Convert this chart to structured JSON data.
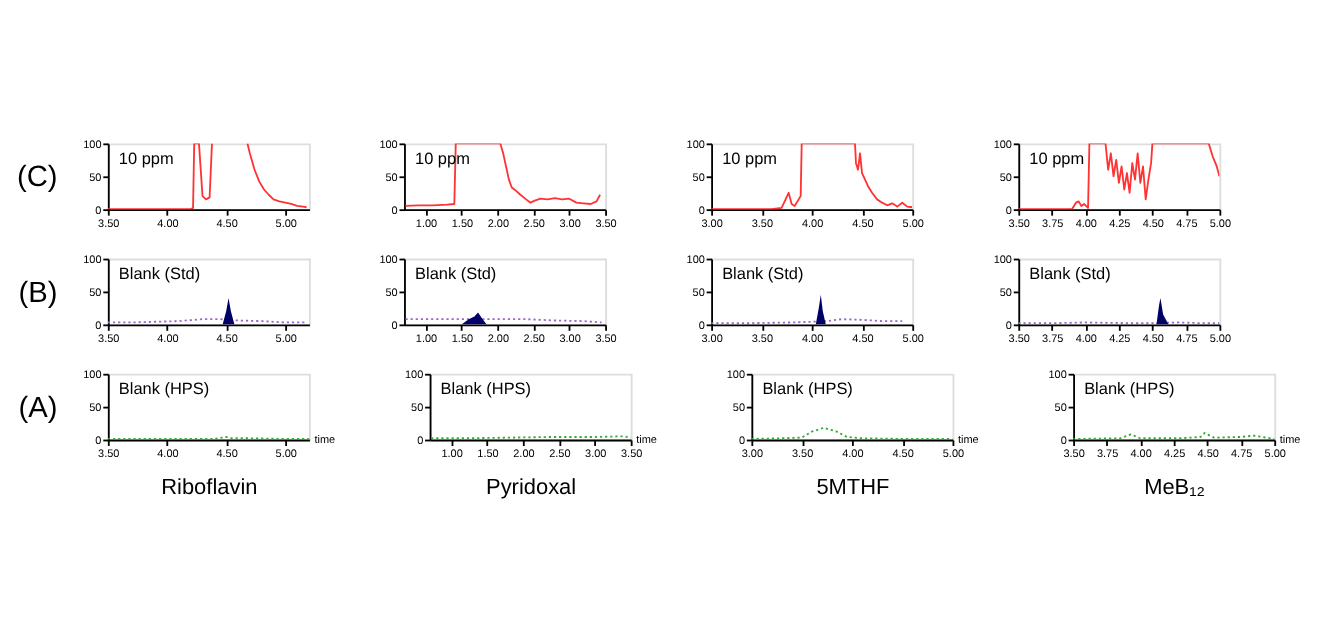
{
  "chart_data": [
    {
      "type": "line",
      "ylabel": "(C)",
      "annotations": [
        "10 ppm"
      ],
      "xlim": [
        3.5,
        5.2
      ],
      "xticks": [
        {
          "value": 3.5,
          "label": "3.50"
        },
        {
          "value": 4.0,
          "label": "4.00"
        },
        {
          "value": 4.5,
          "label": "4.50"
        },
        {
          "value": 5.0,
          "label": "5.00"
        }
      ],
      "ylim": [
        0,
        100
      ],
      "yticks": [
        0,
        50,
        100
      ],
      "line_style": "solid",
      "series": [
        {
          "color": "#ff3333",
          "x": [
            3.5,
            4.0,
            4.2,
            4.22,
            4.23,
            4.27,
            4.3,
            4.33,
            4.36,
            4.38,
            4.39,
            4.68,
            4.7,
            4.74,
            4.78,
            4.82,
            4.86,
            4.9,
            4.95,
            5.0,
            5.05,
            5.1,
            5.15,
            5.18
          ],
          "values": [
            0,
            0,
            0,
            2,
            100,
            100,
            20,
            15,
            18,
            100,
            null,
            100,
            85,
            60,
            42,
            30,
            22,
            15,
            12,
            10,
            8,
            5,
            4,
            3
          ]
        }
      ]
    },
    {
      "type": "line",
      "annotations": [
        "10 ppm"
      ],
      "xlim": [
        0.7,
        3.5
      ],
      "xticks": [
        {
          "value": 1.0,
          "label": "1.00"
        },
        {
          "value": 1.5,
          "label": "1.50"
        },
        {
          "value": 2.0,
          "label": "2.00"
        },
        {
          "value": 2.5,
          "label": "2.50"
        },
        {
          "value": 3.0,
          "label": "3.00"
        },
        {
          "value": 3.5,
          "label": "3.50"
        }
      ],
      "ylim": [
        0,
        100
      ],
      "yticks": [
        0,
        50,
        100
      ],
      "line_style": "solid",
      "series": [
        {
          "color": "#ff3333",
          "x": [
            0.72,
            0.9,
            1.1,
            1.3,
            1.4,
            1.42,
            1.6,
            1.8,
            2.0,
            2.04,
            2.08,
            2.12,
            2.16,
            2.2,
            2.26,
            2.32,
            2.4,
            2.46,
            2.52,
            2.6,
            2.7,
            2.8,
            2.9,
            3.0,
            3.1,
            3.2,
            3.3,
            3.38,
            3.43
          ],
          "values": [
            5,
            6,
            6,
            7,
            8,
            100,
            100,
            100,
            100,
            100,
            85,
            65,
            45,
            33,
            28,
            22,
            15,
            10,
            13,
            16,
            15,
            17,
            15,
            16,
            10,
            9,
            8,
            12,
            22
          ]
        }
      ]
    },
    {
      "type": "line",
      "annotations": [
        "10 ppm"
      ],
      "xlim": [
        3.0,
        5.0
      ],
      "xticks": [
        {
          "value": 3.0,
          "label": "3.00"
        },
        {
          "value": 3.5,
          "label": "3.50"
        },
        {
          "value": 4.0,
          "label": "4.00"
        },
        {
          "value": 4.5,
          "label": "4.50"
        },
        {
          "value": 5.0,
          "label": "5.00"
        }
      ],
      "ylim": [
        0,
        100
      ],
      "yticks": [
        0,
        50,
        100
      ],
      "line_style": "solid",
      "series": [
        {
          "color": "#ff3333",
          "x": [
            3.0,
            3.3,
            3.6,
            3.7,
            3.74,
            3.77,
            3.8,
            3.83,
            3.87,
            3.89,
            3.9,
            4.1,
            4.3,
            4.43,
            4.44,
            4.46,
            4.48,
            4.5,
            4.53,
            4.56,
            4.6,
            4.65,
            4.7,
            4.75,
            4.8,
            4.85,
            4.9,
            4.95,
            5.0
          ],
          "values": [
            0,
            0,
            0,
            2,
            15,
            25,
            8,
            5,
            15,
            20,
            100,
            100,
            100,
            100,
            70,
            60,
            85,
            55,
            45,
            35,
            25,
            15,
            10,
            6,
            9,
            4,
            10,
            4,
            3
          ]
        }
      ]
    },
    {
      "type": "line",
      "annotations": [
        "10 ppm"
      ],
      "xlim": [
        3.5,
        5.0
      ],
      "xticks": [
        {
          "value": 3.5,
          "label": "3.50"
        },
        {
          "value": 3.75,
          "label": "3.75"
        },
        {
          "value": 4.0,
          "label": "4.00"
        },
        {
          "value": 4.25,
          "label": "4.25"
        },
        {
          "value": 4.5,
          "label": "4.50"
        },
        {
          "value": 4.75,
          "label": "4.75"
        },
        {
          "value": 5.0,
          "label": "5.00"
        }
      ],
      "ylim": [
        0,
        100
      ],
      "yticks": [
        0,
        50,
        100
      ],
      "line_style": "solid",
      "series": [
        {
          "color": "#ff3333",
          "x": [
            3.5,
            3.7,
            3.9,
            3.93,
            3.95,
            3.97,
            3.99,
            4.02,
            4.03,
            4.15,
            4.17,
            4.19,
            4.21,
            4.23,
            4.25,
            4.27,
            4.29,
            4.31,
            4.33,
            4.35,
            4.37,
            4.39,
            4.41,
            4.43,
            4.45,
            4.47,
            4.49,
            4.5,
            4.7,
            4.92,
            4.95,
            4.98,
            5.0
          ],
          "values": [
            0,
            0,
            0,
            10,
            12,
            5,
            8,
            2,
            100,
            100,
            60,
            85,
            50,
            75,
            40,
            65,
            30,
            55,
            25,
            70,
            45,
            85,
            40,
            65,
            15,
            45,
            70,
            100,
            100,
            100,
            80,
            65,
            50
          ]
        }
      ]
    },
    {
      "type": "line",
      "ylabel": "(B)",
      "annotations": [
        "Blank (Std)"
      ],
      "xlim": [
        3.5,
        5.2
      ],
      "xticks": [
        {
          "value": 3.5,
          "label": "3.50"
        },
        {
          "value": 4.0,
          "label": "4.00"
        },
        {
          "value": 4.5,
          "label": "4.50"
        },
        {
          "value": 5.0,
          "label": "5.00"
        }
      ],
      "ylim": [
        0,
        100
      ],
      "yticks": [
        0,
        50,
        100
      ],
      "line_style": "dotted",
      "series": [
        {
          "color": "#9966cc",
          "x": [
            3.5,
            3.7,
            3.9,
            4.1,
            4.3,
            4.45,
            4.6,
            4.8,
            5.0,
            5.18
          ],
          "values": [
            3,
            3,
            4,
            5,
            8,
            8,
            6,
            5,
            3,
            3
          ]
        },
        {
          "type": "area",
          "color": "#000066",
          "x": [
            4.47,
            4.5,
            4.52,
            4.54,
            4.57
          ],
          "values": [
            0,
            20,
            40,
            20,
            0
          ]
        }
      ]
    },
    {
      "type": "line",
      "annotations": [
        "Blank (Std)"
      ],
      "xlim": [
        0.7,
        3.5
      ],
      "xticks": [
        {
          "value": 1.0,
          "label": "1.00"
        },
        {
          "value": 1.5,
          "label": "1.50"
        },
        {
          "value": 2.0,
          "label": "2.00"
        },
        {
          "value": 2.5,
          "label": "2.50"
        },
        {
          "value": 3.0,
          "label": "3.00"
        },
        {
          "value": 3.5,
          "label": "3.50"
        }
      ],
      "ylim": [
        0,
        100
      ],
      "yticks": [
        0,
        50,
        100
      ],
      "line_style": "dotted",
      "series": [
        {
          "color": "#9966cc",
          "x": [
            0.72,
            1.0,
            1.3,
            1.6,
            2.0,
            2.4,
            2.8,
            3.2,
            3.45
          ],
          "values": [
            8,
            8,
            8,
            8,
            8,
            8,
            6,
            5,
            3
          ]
        },
        {
          "type": "area",
          "color": "#000066",
          "x": [
            1.5,
            1.6,
            1.68,
            1.73,
            1.78,
            1.85
          ],
          "values": [
            0,
            8,
            12,
            18,
            10,
            0
          ]
        }
      ]
    },
    {
      "type": "line",
      "annotations": [
        "Blank (Std)"
      ],
      "xlim": [
        3.0,
        5.0
      ],
      "xticks": [
        {
          "value": 3.0,
          "label": "3.00"
        },
        {
          "value": 3.5,
          "label": "3.50"
        },
        {
          "value": 4.0,
          "label": "4.00"
        },
        {
          "value": 4.5,
          "label": "4.50"
        },
        {
          "value": 5.0,
          "label": "5.00"
        }
      ],
      "ylim": [
        0,
        100
      ],
      "yticks": [
        0,
        50,
        100
      ],
      "line_style": "dotted",
      "series": [
        {
          "color": "#9966cc",
          "x": [
            3.0,
            3.4,
            3.8,
            4.0,
            4.15,
            4.3,
            4.5,
            4.7,
            4.9
          ],
          "values": [
            2,
            2,
            3,
            4,
            5,
            8,
            7,
            5,
            5
          ]
        },
        {
          "type": "area",
          "color": "#000066",
          "x": [
            4.04,
            4.07,
            4.09,
            4.11,
            4.14
          ],
          "values": [
            0,
            25,
            45,
            20,
            0
          ]
        }
      ]
    },
    {
      "type": "line",
      "annotations": [
        "Blank (Std)"
      ],
      "xlim": [
        3.5,
        5.0
      ],
      "xticks": [
        {
          "value": 3.5,
          "label": "3.50"
        },
        {
          "value": 3.75,
          "label": "3.75"
        },
        {
          "value": 4.0,
          "label": "4.00"
        },
        {
          "value": 4.25,
          "label": "4.25"
        },
        {
          "value": 4.5,
          "label": "4.50"
        },
        {
          "value": 4.75,
          "label": "4.75"
        },
        {
          "value": 5.0,
          "label": "5.00"
        }
      ],
      "ylim": [
        0,
        100
      ],
      "yticks": [
        0,
        50,
        100
      ],
      "line_style": "dotted",
      "series": [
        {
          "color": "#9966cc",
          "x": [
            3.5,
            3.8,
            4.0,
            4.3,
            4.5,
            4.7,
            4.85,
            5.0
          ],
          "values": [
            2,
            2,
            3,
            2,
            2,
            3,
            2,
            2
          ]
        },
        {
          "type": "area",
          "color": "#000066",
          "x": [
            4.53,
            4.55,
            4.56,
            4.58,
            4.62
          ],
          "values": [
            0,
            30,
            40,
            15,
            0
          ]
        }
      ]
    },
    {
      "type": "line",
      "ylabel": "(A)",
      "xlabel": "Riboflavin",
      "annotations": [
        "Blank (HPS)",
        "time"
      ],
      "xlim": [
        3.5,
        5.2
      ],
      "xticks": [
        {
          "value": 3.5,
          "label": "3.50"
        },
        {
          "value": 4.0,
          "label": "4.00"
        },
        {
          "value": 4.5,
          "label": "4.50"
        },
        {
          "value": 5.0,
          "label": "5.00"
        }
      ],
      "ylim": [
        0,
        100
      ],
      "yticks": [
        0,
        50,
        100
      ],
      "line_style": "dotted",
      "series": [
        {
          "color": "#33aa33",
          "x": [
            3.5,
            3.8,
            4.1,
            4.4,
            4.5,
            4.55,
            4.7,
            5.0,
            5.2
          ],
          "values": [
            1,
            1,
            1,
            1,
            4,
            2,
            2,
            1,
            1
          ]
        }
      ]
    },
    {
      "type": "line",
      "xlabel": "Pyridoxal",
      "annotations": [
        "Blank (HPS)",
        "time"
      ],
      "xlim": [
        0.7,
        3.5
      ],
      "xticks": [
        {
          "value": 1.0,
          "label": "1.00"
        },
        {
          "value": 1.5,
          "label": "1.50"
        },
        {
          "value": 2.0,
          "label": "2.00"
        },
        {
          "value": 2.5,
          "label": "2.50"
        },
        {
          "value": 3.0,
          "label": "3.00"
        },
        {
          "value": 3.5,
          "label": "3.50"
        }
      ],
      "ylim": [
        0,
        100
      ],
      "yticks": [
        0,
        50,
        100
      ],
      "line_style": "dotted",
      "series": [
        {
          "color": "#33aa33",
          "x": [
            0.72,
            1.2,
            1.8,
            2.4,
            3.0,
            3.4,
            3.5
          ],
          "values": [
            2,
            2,
            3,
            4,
            4,
            5,
            3
          ]
        }
      ]
    },
    {
      "type": "line",
      "xlabel": "5MTHF",
      "annotations": [
        "Blank (HPS)",
        "time"
      ],
      "xlim": [
        3.0,
        5.0
      ],
      "xticks": [
        {
          "value": 3.0,
          "label": "3.00"
        },
        {
          "value": 3.5,
          "label": "3.50"
        },
        {
          "value": 4.0,
          "label": "4.00"
        },
        {
          "value": 4.5,
          "label": "4.50"
        },
        {
          "value": 5.0,
          "label": "5.00"
        }
      ],
      "ylim": [
        0,
        100
      ],
      "yticks": [
        0,
        50,
        100
      ],
      "line_style": "dotted",
      "series": [
        {
          "color": "#33aa33",
          "x": [
            3.0,
            3.3,
            3.5,
            3.6,
            3.72,
            3.85,
            3.95,
            4.1,
            4.5,
            5.0
          ],
          "values": [
            1,
            2,
            3,
            12,
            18,
            12,
            4,
            2,
            1,
            1
          ]
        }
      ]
    },
    {
      "type": "line",
      "xlabel": "MeB₁₂",
      "annotations": [
        "Blank (HPS)",
        "time"
      ],
      "xlim": [
        3.5,
        5.0
      ],
      "xticks": [
        {
          "value": 3.5,
          "label": "3.50"
        },
        {
          "value": 3.75,
          "label": "3.75"
        },
        {
          "value": 4.0,
          "label": "4.00"
        },
        {
          "value": 4.25,
          "label": "4.25"
        },
        {
          "value": 4.5,
          "label": "4.50"
        },
        {
          "value": 4.75,
          "label": "4.75"
        },
        {
          "value": 5.0,
          "label": "5.00"
        }
      ],
      "ylim": [
        0,
        100
      ],
      "yticks": [
        0,
        50,
        100
      ],
      "line_style": "dotted",
      "series": [
        {
          "color": "#33aa33",
          "x": [
            3.5,
            3.85,
            3.93,
            4.0,
            4.3,
            4.45,
            4.48,
            4.55,
            4.75,
            4.85,
            5.0
          ],
          "values": [
            1,
            2,
            8,
            2,
            2,
            4,
            10,
            3,
            4,
            6,
            1
          ]
        }
      ]
    }
  ]
}
